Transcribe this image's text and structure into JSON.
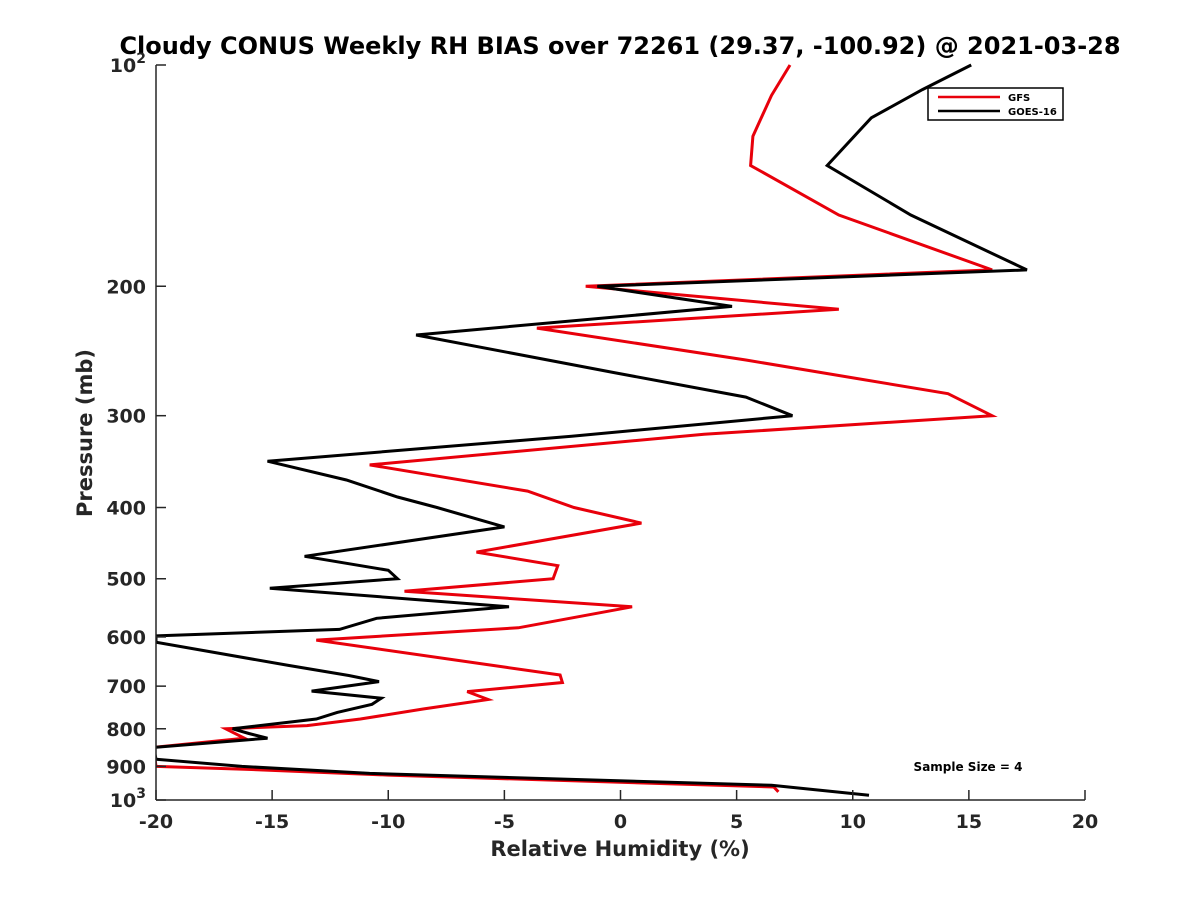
{
  "chart_data": {
    "type": "line",
    "title": "Cloudy CONUS Weekly RH BIAS over 72261 (29.37, -100.92) @ 2021-03-28",
    "xlabel": "Relative Humidity (%)",
    "ylabel": "Pressure (mb)",
    "xlim": [
      -20,
      20
    ],
    "ylim": [
      100,
      1000
    ],
    "y_scale": "log",
    "y_reversed": true,
    "grid": false,
    "legend_position": "top-right",
    "x_ticks": [
      {
        "value": -20,
        "label": "-20"
      },
      {
        "value": -15,
        "label": "-15"
      },
      {
        "value": -10,
        "label": "-10"
      },
      {
        "value": -5,
        "label": "-5"
      },
      {
        "value": 0,
        "label": "0"
      },
      {
        "value": 5,
        "label": "5"
      },
      {
        "value": 10,
        "label": "10"
      },
      {
        "value": 15,
        "label": "15"
      },
      {
        "value": 20,
        "label": "20"
      }
    ],
    "y_ticks": [
      {
        "value": 100,
        "base": "10",
        "exp": "2"
      },
      {
        "value": 200,
        "label": "200"
      },
      {
        "value": 300,
        "label": "300"
      },
      {
        "value": 400,
        "label": "400"
      },
      {
        "value": 500,
        "label": "500"
      },
      {
        "value": 600,
        "label": "600"
      },
      {
        "value": 700,
        "label": "700"
      },
      {
        "value": 800,
        "label": "800"
      },
      {
        "value": 900,
        "label": "900"
      },
      {
        "value": 1000,
        "base": "10",
        "exp": "3"
      }
    ],
    "annotation": "Sample Size = 4",
    "series": [
      {
        "name": "GFS",
        "color": "#e8000b",
        "points": [
          [
            7.3,
            100
          ],
          [
            6.5,
            110
          ],
          [
            5.7,
            125
          ],
          [
            5.6,
            137
          ],
          [
            9.4,
            160
          ],
          [
            16.0,
            190
          ],
          [
            -1.5,
            200
          ],
          [
            9.4,
            215
          ],
          [
            -3.6,
            228
          ],
          [
            5.4,
            252
          ],
          [
            14.1,
            280
          ],
          [
            16.0,
            300
          ],
          [
            3.6,
            318
          ],
          [
            -10.8,
            350
          ],
          [
            -4.0,
            380
          ],
          [
            -2.0,
            400
          ],
          [
            0.9,
            420
          ],
          [
            -6.2,
            460
          ],
          [
            -2.7,
            480
          ],
          [
            -2.9,
            500
          ],
          [
            -9.3,
            520
          ],
          [
            0.5,
            546
          ],
          [
            -4.4,
            583
          ],
          [
            -13.1,
            606
          ],
          [
            -4.9,
            660
          ],
          [
            -2.6,
            676
          ],
          [
            -2.5,
            692
          ],
          [
            -6.6,
            712
          ],
          [
            -5.7,
            730
          ],
          [
            -8.5,
            752
          ],
          [
            -11.2,
            776
          ],
          [
            -13.5,
            792
          ],
          [
            -17.0,
            800
          ],
          [
            -16.2,
            824
          ],
          [
            -20.1,
            848
          ],
          [
            -20.0,
            900
          ],
          [
            -16.2,
            908
          ],
          [
            -10.0,
            925
          ],
          [
            6.6,
            960
          ],
          [
            6.8,
            975
          ]
        ]
      },
      {
        "name": "GOES-16",
        "color": "#000000",
        "points": [
          [
            15.1,
            100
          ],
          [
            13.0,
            108
          ],
          [
            10.8,
            118
          ],
          [
            8.9,
            137
          ],
          [
            12.5,
            160
          ],
          [
            17.5,
            190
          ],
          [
            -1.0,
            200
          ],
          [
            4.8,
            213
          ],
          [
            -8.8,
            233
          ],
          [
            -0.3,
            262
          ],
          [
            5.4,
            283
          ],
          [
            7.4,
            300
          ],
          [
            -2.1,
            320
          ],
          [
            -15.2,
            346
          ],
          [
            -11.8,
            367
          ],
          [
            -9.6,
            387
          ],
          [
            -7.9,
            400
          ],
          [
            -5.0,
            425
          ],
          [
            -13.6,
            466
          ],
          [
            -10.0,
            487
          ],
          [
            -9.6,
            500
          ],
          [
            -15.1,
            515
          ],
          [
            -4.8,
            546
          ],
          [
            -10.5,
            566
          ],
          [
            -12.1,
            586
          ],
          [
            -20.0,
            598
          ],
          [
            -20.0,
            610
          ],
          [
            -14.3,
            656
          ],
          [
            -11.7,
            677
          ],
          [
            -10.4,
            690
          ],
          [
            -13.3,
            711
          ],
          [
            -10.3,
            727
          ],
          [
            -10.7,
            741
          ],
          [
            -12.2,
            760
          ],
          [
            -13.1,
            776
          ],
          [
            -16.7,
            800
          ],
          [
            -16.0,
            812
          ],
          [
            -15.2,
            824
          ],
          [
            -20.1,
            848
          ],
          [
            -20.0,
            880
          ],
          [
            -16.3,
            900
          ],
          [
            -10.8,
            920
          ],
          [
            6.5,
            955
          ],
          [
            10.7,
            985
          ]
        ]
      }
    ]
  }
}
